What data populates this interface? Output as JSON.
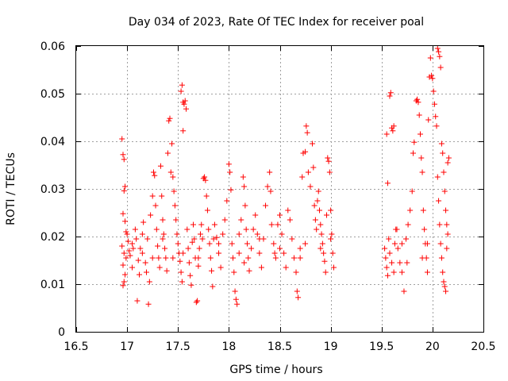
{
  "chart_data": {
    "type": "scatter",
    "title": "Day 034 of 2023, Rate Of TEC Index for receiver poal",
    "xlabel": "GPS time / hours",
    "ylabel": "ROTI / TECUs",
    "xlim": [
      16.5,
      20.5
    ],
    "ylim": [
      0,
      0.06
    ],
    "x_ticks": [
      16.5,
      17,
      17.5,
      18,
      18.5,
      19,
      19.5,
      20,
      20.5
    ],
    "x_tick_labels": [
      "16.5",
      "17",
      "17.5",
      "18",
      "18.5",
      "19",
      "19.5",
      "20",
      "20.5"
    ],
    "y_ticks": [
      0,
      0.01,
      0.02,
      0.03,
      0.04,
      0.05,
      0.06
    ],
    "y_tick_labels": [
      "0",
      "0.01",
      "0.02",
      "0.03",
      "0.04",
      "0.05",
      "0.06"
    ],
    "grid": true,
    "marker": "+",
    "series": [
      {
        "name": "ROTI",
        "color": "#ff0000",
        "points": [
          [
            16.95,
            0.0405
          ],
          [
            16.96,
            0.0372
          ],
          [
            16.97,
            0.0362
          ],
          [
            16.97,
            0.0296
          ],
          [
            16.98,
            0.0305
          ],
          [
            16.96,
            0.0248
          ],
          [
            16.98,
            0.0232
          ],
          [
            16.99,
            0.021
          ],
          [
            16.95,
            0.018
          ],
          [
            16.97,
            0.0165
          ],
          [
            16.99,
            0.0155
          ],
          [
            16.96,
            0.014
          ],
          [
            16.98,
            0.012
          ],
          [
            16.97,
            0.0105
          ],
          [
            16.96,
            0.0097
          ],
          [
            17.0,
            0.0205
          ],
          [
            17.01,
            0.019
          ],
          [
            17.02,
            0.017
          ],
          [
            17.03,
            0.016
          ],
          [
            17.05,
            0.0135
          ],
          [
            17.06,
            0.0175
          ],
          [
            17.08,
            0.0215
          ],
          [
            17.09,
            0.0195
          ],
          [
            17.1,
            0.0065
          ],
          [
            17.11,
            0.015
          ],
          [
            17.12,
            0.012
          ],
          [
            17.13,
            0.0175
          ],
          [
            17.15,
            0.0205
          ],
          [
            17.16,
            0.023
          ],
          [
            17.18,
            0.0145
          ],
          [
            17.19,
            0.0125
          ],
          [
            17.2,
            0.0195
          ],
          [
            17.21,
            0.0058
          ],
          [
            17.22,
            0.0105
          ],
          [
            17.23,
            0.0245
          ],
          [
            17.25,
            0.0285
          ],
          [
            17.26,
            0.0335
          ],
          [
            17.27,
            0.0328
          ],
          [
            17.28,
            0.0265
          ],
          [
            17.29,
            0.0215
          ],
          [
            17.3,
            0.018
          ],
          [
            17.31,
            0.0155
          ],
          [
            17.32,
            0.0135
          ],
          [
            17.33,
            0.0348
          ],
          [
            17.34,
            0.0285
          ],
          [
            17.35,
            0.0235
          ],
          [
            17.36,
            0.0205
          ],
          [
            17.37,
            0.0175
          ],
          [
            17.38,
            0.0155
          ],
          [
            17.39,
            0.0128
          ],
          [
            17.4,
            0.0375
          ],
          [
            17.41,
            0.0443
          ],
          [
            17.42,
            0.0448
          ],
          [
            17.43,
            0.0335
          ],
          [
            17.44,
            0.0395
          ],
          [
            17.45,
            0.0325
          ],
          [
            17.46,
            0.0295
          ],
          [
            17.47,
            0.0265
          ],
          [
            17.48,
            0.0235
          ],
          [
            17.49,
            0.0205
          ],
          [
            17.5,
            0.0185
          ],
          [
            17.51,
            0.0165
          ],
          [
            17.52,
            0.0148
          ],
          [
            17.53,
            0.0125
          ],
          [
            17.54,
            0.0105
          ],
          [
            17.53,
            0.0505
          ],
          [
            17.54,
            0.0518
          ],
          [
            17.55,
            0.0482
          ],
          [
            17.56,
            0.0478
          ],
          [
            17.57,
            0.0485
          ],
          [
            17.58,
            0.0468
          ],
          [
            17.55,
            0.0422
          ],
          [
            17.59,
            0.0215
          ],
          [
            17.6,
            0.0175
          ],
          [
            17.61,
            0.0145
          ],
          [
            17.62,
            0.0118
          ],
          [
            17.63,
            0.0098
          ],
          [
            17.64,
            0.0188
          ],
          [
            17.65,
            0.0225
          ],
          [
            17.66,
            0.0195
          ],
          [
            17.67,
            0.0155
          ],
          [
            17.68,
            0.0062
          ],
          [
            17.69,
            0.0065
          ],
          [
            17.7,
            0.0138
          ],
          [
            17.71,
            0.0175
          ],
          [
            17.72,
            0.0205
          ],
          [
            17.73,
            0.0225
          ],
          [
            17.74,
            0.0195
          ],
          [
            17.75,
            0.0322
          ],
          [
            17.76,
            0.0325
          ],
          [
            17.77,
            0.0318
          ],
          [
            17.78,
            0.0285
          ],
          [
            17.79,
            0.0255
          ],
          [
            17.8,
            0.0215
          ],
          [
            17.81,
            0.0185
          ],
          [
            17.82,
            0.0155
          ],
          [
            17.83,
            0.0128
          ],
          [
            17.84,
            0.0095
          ],
          [
            17.86,
            0.0225
          ],
          [
            17.88,
            0.0198
          ],
          [
            17.9,
            0.0165
          ],
          [
            17.92,
            0.0135
          ],
          [
            17.94,
            0.0205
          ],
          [
            17.96,
            0.0235
          ],
          [
            17.98,
            0.0275
          ],
          [
            18.0,
            0.0352
          ],
          [
            18.01,
            0.0335
          ],
          [
            18.02,
            0.0298
          ],
          [
            18.03,
            0.0185
          ],
          [
            18.04,
            0.0155
          ],
          [
            18.05,
            0.0125
          ],
          [
            18.06,
            0.0085
          ],
          [
            18.07,
            0.0068
          ],
          [
            18.08,
            0.0058
          ],
          [
            18.1,
            0.0205
          ],
          [
            18.12,
            0.0235
          ],
          [
            18.14,
            0.0325
          ],
          [
            18.15,
            0.0305
          ],
          [
            18.16,
            0.0265
          ],
          [
            18.17,
            0.0215
          ],
          [
            18.18,
            0.0185
          ],
          [
            18.19,
            0.0155
          ],
          [
            18.2,
            0.0128
          ],
          [
            18.22,
            0.0175
          ],
          [
            18.24,
            0.0215
          ],
          [
            18.26,
            0.0245
          ],
          [
            18.28,
            0.0205
          ],
          [
            18.3,
            0.0165
          ],
          [
            18.32,
            0.0135
          ],
          [
            18.34,
            0.0195
          ],
          [
            18.36,
            0.0265
          ],
          [
            18.38,
            0.0305
          ],
          [
            18.4,
            0.0335
          ],
          [
            18.41,
            0.0295
          ],
          [
            18.42,
            0.0225
          ],
          [
            18.44,
            0.0185
          ],
          [
            18.46,
            0.0155
          ],
          [
            18.48,
            0.0225
          ],
          [
            18.5,
            0.0245
          ],
          [
            18.52,
            0.0205
          ],
          [
            18.54,
            0.0165
          ],
          [
            18.56,
            0.0135
          ],
          [
            18.58,
            0.0255
          ],
          [
            18.6,
            0.0235
          ],
          [
            18.62,
            0.0195
          ],
          [
            18.64,
            0.0155
          ],
          [
            18.66,
            0.0125
          ],
          [
            18.67,
            0.0085
          ],
          [
            18.68,
            0.0072
          ],
          [
            18.7,
            0.0175
          ],
          [
            18.72,
            0.0325
          ],
          [
            18.73,
            0.0375
          ],
          [
            18.75,
            0.0378
          ],
          [
            18.76,
            0.0432
          ],
          [
            18.77,
            0.0418
          ],
          [
            18.78,
            0.0335
          ],
          [
            18.8,
            0.0305
          ],
          [
            18.82,
            0.0395
          ],
          [
            18.83,
            0.0345
          ],
          [
            18.84,
            0.0265
          ],
          [
            18.85,
            0.0235
          ],
          [
            18.86,
            0.0215
          ],
          [
            18.87,
            0.0275
          ],
          [
            18.88,
            0.0295
          ],
          [
            18.89,
            0.0255
          ],
          [
            18.9,
            0.0225
          ],
          [
            18.91,
            0.0205
          ],
          [
            18.92,
            0.0185
          ],
          [
            18.93,
            0.0165
          ],
          [
            18.94,
            0.0148
          ],
          [
            18.95,
            0.0125
          ],
          [
            18.96,
            0.0245
          ],
          [
            18.97,
            0.0365
          ],
          [
            18.98,
            0.0358
          ],
          [
            18.99,
            0.0335
          ],
          [
            19.0,
            0.0255
          ],
          [
            19.01,
            0.0205
          ],
          [
            19.02,
            0.0165
          ],
          [
            19.03,
            0.0135
          ],
          [
            19.55,
            0.0415
          ],
          [
            19.56,
            0.0312
          ],
          [
            19.58,
            0.0495
          ],
          [
            19.59,
            0.0502
          ],
          [
            19.6,
            0.0428
          ],
          [
            19.61,
            0.0422
          ],
          [
            19.62,
            0.0432
          ],
          [
            19.53,
            0.0175
          ],
          [
            19.54,
            0.0155
          ],
          [
            19.55,
            0.0135
          ],
          [
            19.56,
            0.0118
          ],
          [
            19.57,
            0.0195
          ],
          [
            19.58,
            0.0165
          ],
          [
            19.6,
            0.0145
          ],
          [
            19.62,
            0.0125
          ],
          [
            19.63,
            0.0185
          ],
          [
            19.64,
            0.0215
          ],
          [
            19.66,
            0.0175
          ],
          [
            19.68,
            0.0145
          ],
          [
            19.7,
            0.0125
          ],
          [
            19.72,
            0.0085
          ],
          [
            19.74,
            0.0195
          ],
          [
            19.76,
            0.0225
          ],
          [
            19.78,
            0.0255
          ],
          [
            19.8,
            0.0295
          ],
          [
            19.81,
            0.0375
          ],
          [
            19.82,
            0.0398
          ],
          [
            19.84,
            0.0485
          ],
          [
            19.85,
            0.0488
          ],
          [
            19.86,
            0.0482
          ],
          [
            19.87,
            0.0455
          ],
          [
            19.88,
            0.0415
          ],
          [
            19.89,
            0.0365
          ],
          [
            19.9,
            0.0335
          ],
          [
            19.91,
            0.0255
          ],
          [
            19.92,
            0.0215
          ],
          [
            19.93,
            0.0185
          ],
          [
            19.94,
            0.0155
          ],
          [
            19.95,
            0.0125
          ],
          [
            19.96,
            0.0445
          ],
          [
            19.97,
            0.0535
          ],
          [
            19.98,
            0.0575
          ],
          [
            19.99,
            0.0538
          ],
          [
            20.0,
            0.0532
          ],
          [
            20.01,
            0.0505
          ],
          [
            20.02,
            0.0478
          ],
          [
            20.03,
            0.0452
          ],
          [
            20.04,
            0.0432
          ],
          [
            20.05,
            0.0595
          ],
          [
            20.06,
            0.0588
          ],
          [
            20.07,
            0.0578
          ],
          [
            20.08,
            0.0555
          ],
          [
            20.09,
            0.0395
          ],
          [
            20.1,
            0.0375
          ],
          [
            20.11,
            0.0335
          ],
          [
            20.12,
            0.0295
          ],
          [
            20.13,
            0.0255
          ],
          [
            20.14,
            0.0225
          ],
          [
            20.15,
            0.0355
          ],
          [
            20.16,
            0.0365
          ],
          [
            20.05,
            0.0325
          ],
          [
            20.06,
            0.0275
          ],
          [
            20.07,
            0.0225
          ],
          [
            20.08,
            0.0185
          ],
          [
            20.09,
            0.0155
          ],
          [
            20.1,
            0.0125
          ],
          [
            20.11,
            0.0105
          ],
          [
            20.12,
            0.0095
          ],
          [
            20.13,
            0.0085
          ],
          [
            20.14,
            0.0175
          ],
          [
            20.15,
            0.0205
          ],
          [
            19.9,
            0.0155
          ],
          [
            19.95,
            0.0185
          ],
          [
            19.75,
            0.0145
          ],
          [
            19.7,
            0.0185
          ],
          [
            19.65,
            0.0215
          ],
          [
            17.45,
            0.0155
          ],
          [
            17.35,
            0.0195
          ],
          [
            17.15,
            0.0165
          ],
          [
            17.05,
            0.0185
          ],
          [
            17.7,
            0.0155
          ],
          [
            17.9,
            0.0185
          ],
          [
            18.1,
            0.0165
          ],
          [
            18.3,
            0.0195
          ],
          [
            18.5,
            0.0175
          ],
          [
            18.7,
            0.0155
          ],
          [
            18.9,
            0.0175
          ],
          [
            17.25,
            0.0155
          ],
          [
            17.55,
            0.0165
          ],
          [
            17.85,
            0.0195
          ],
          [
            18.15,
            0.0145
          ],
          [
            18.45,
            0.0165
          ],
          [
            18.75,
            0.0185
          ],
          [
            19.0,
            0.0195
          ]
        ]
      }
    ]
  }
}
